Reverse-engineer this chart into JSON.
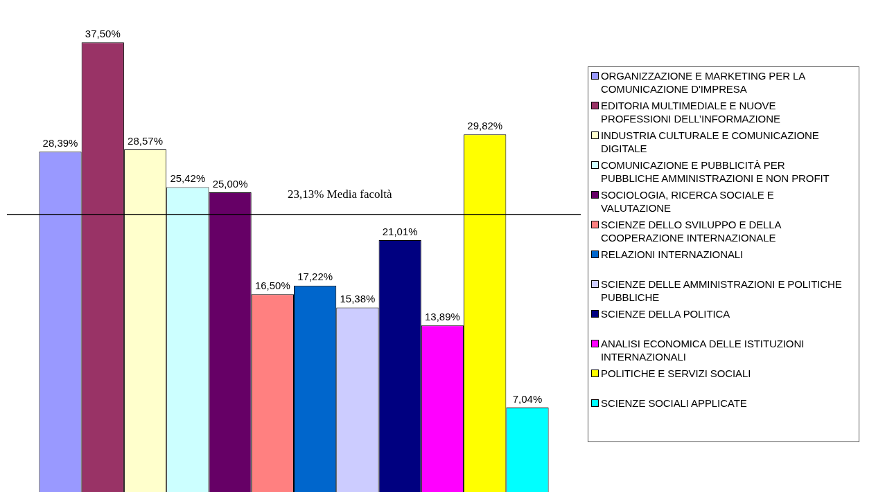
{
  "chart_data": {
    "type": "bar",
    "categories": [
      null
    ],
    "legend": "right",
    "series": [
      {
        "name": "ORGANIZZAZIONE E MARKETING PER LA COMUNICAZIONE D'IMPRESA",
        "color": "#9999ff",
        "values": [
          28.39
        ],
        "value_labels": [
          "28,39%"
        ]
      },
      {
        "name": "EDITORIA MULTIMEDIALE E NUOVE PROFESSIONI DELL’INFORMAZIONE",
        "color": "#993366",
        "values": [
          37.5
        ],
        "value_labels": [
          "37,50%"
        ]
      },
      {
        "name": "INDUSTRIA CULTURALE E COMUNICAZIONE DIGITALE",
        "color": "#ffffcc",
        "values": [
          28.57
        ],
        "value_labels": [
          "28,57%"
        ]
      },
      {
        "name": "COMUNICAZIONE E PUBBLICITÀ PER PUBBLICHE AMMINISTRAZIONI E NON PROFIT",
        "color": "#ccffff",
        "values": [
          25.42
        ],
        "value_labels": [
          "25,42%"
        ]
      },
      {
        "name": "SOCIOLOGIA, RICERCA SOCIALE E VALUTAZIONE",
        "color": "#660066",
        "values": [
          25.0
        ],
        "value_labels": [
          "25,00%"
        ]
      },
      {
        "name": "SCIENZE DELLO SVILUPPO E DELLA COOPERAZIONE INTERNAZIONALE",
        "color": "#ff8080",
        "values": [
          16.5
        ],
        "value_labels": [
          "16,50%"
        ]
      },
      {
        "name": "RELAZIONI INTERNAZIONALI",
        "color": "#0066cc",
        "values": [
          17.22
        ],
        "value_labels": [
          "17,22%"
        ]
      },
      {
        "name": "SCIENZE DELLE AMMINISTRAZIONI E POLITICHE PUBBLICHE",
        "color": "#ccccff",
        "values": [
          15.38
        ],
        "value_labels": [
          "15,38%"
        ]
      },
      {
        "name": "SCIENZE DELLA POLITICA",
        "color": "#000080",
        "values": [
          21.01
        ],
        "value_labels": [
          "21,01%"
        ]
      },
      {
        "name": "ANALISI ECONOMICA DELLE ISTITUZIONI INTERNAZIONALI",
        "color": "#ff00ff",
        "values": [
          13.89
        ],
        "value_labels": [
          "13,89%"
        ]
      },
      {
        "name": "POLITICHE E SERVIZI SOCIALI",
        "color": "#ffff00",
        "values": [
          29.82
        ],
        "value_labels": [
          "29,82%"
        ]
      },
      {
        "name": "SCIENZE SOCIALI APPLICATE",
        "color": "#00ffff",
        "values": [
          7.04
        ],
        "value_labels": [
          "7,04%"
        ]
      }
    ],
    "ref_lines": [
      {
        "axis": "y",
        "value": 23.13,
        "label": "23,13% Media facoltà",
        "color": "#000000"
      }
    ]
  }
}
